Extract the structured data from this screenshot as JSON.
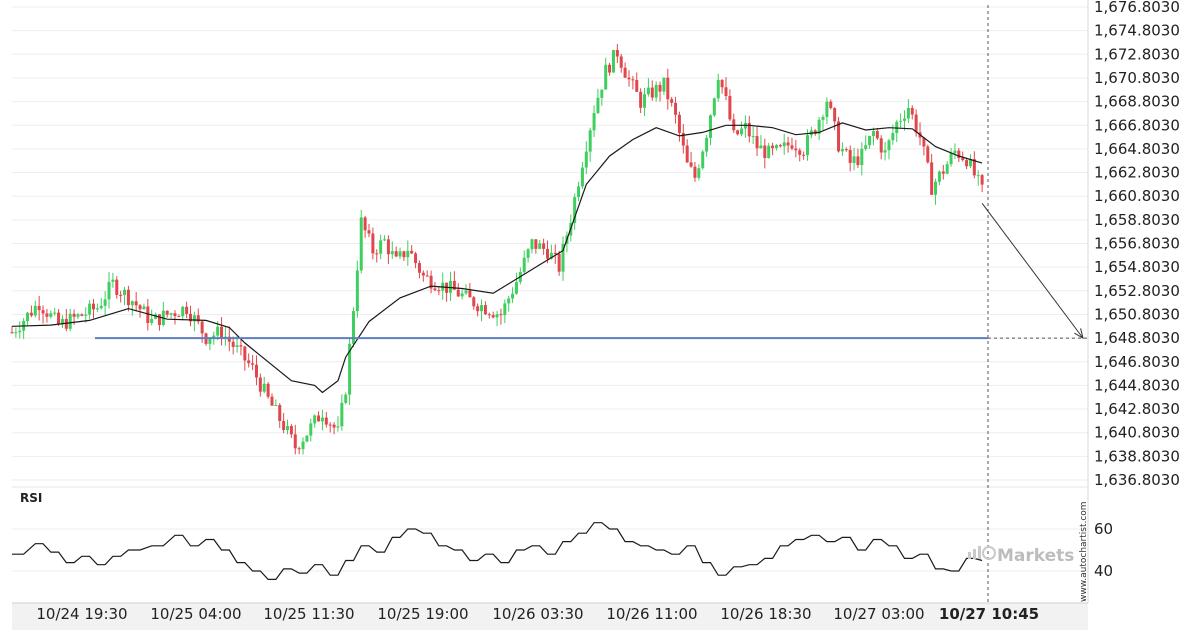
{
  "chart_data": [
    {
      "type": "candlestick",
      "x_labels": [
        "10/24 19:30",
        "10/25 04:00",
        "10/25 11:30",
        "10/25 19:00",
        "10/26 03:30",
        "10/26 11:00",
        "10/26 18:30",
        "10/27 03:00",
        "10/27 10:45"
      ],
      "current_x_label": "10/27 10:45",
      "y_ticks": [
        "1,676.8030",
        "1,674.8030",
        "1,672.8030",
        "1,670.8030",
        "1,668.8030",
        "1,666.8030",
        "1,664.8030",
        "1,662.8030",
        "1,660.8030",
        "1,658.8030",
        "1,656.8030",
        "1,654.8030",
        "1,652.8030",
        "1,650.8030",
        "1,648.8030",
        "1,646.8030",
        "1,644.8030",
        "1,642.8030",
        "1,640.8030",
        "1,638.8030",
        "1,636.8030"
      ],
      "ylim": [
        1636.803,
        1676.803
      ],
      "price_path": [
        [
          0,
          1649.3
        ],
        [
          7,
          1651.8
        ],
        [
          12,
          1649.9
        ],
        [
          17,
          1650.6
        ],
        [
          22,
          1651.4
        ],
        [
          26,
          1653.4
        ],
        [
          31,
          1652.0
        ],
        [
          36,
          1650.2
        ],
        [
          40,
          1650.8
        ],
        [
          45,
          1651.4
        ],
        [
          50,
          1648.9
        ],
        [
          54,
          1649.3
        ],
        [
          58,
          1647.8
        ],
        [
          62,
          1646.2
        ],
        [
          66,
          1643.6
        ],
        [
          70,
          1641.4
        ],
        [
          73,
          1639.6
        ],
        [
          76,
          1640.8
        ],
        [
          80,
          1642.6
        ],
        [
          84,
          1640.8
        ],
        [
          86,
          1644.6
        ],
        [
          88,
          1651.4
        ],
        [
          90,
          1658.6
        ],
        [
          93,
          1656.2
        ],
        [
          96,
          1657.0
        ],
        [
          99,
          1655.2
        ],
        [
          102,
          1656.4
        ],
        [
          106,
          1654.0
        ],
        [
          110,
          1653.4
        ],
        [
          114,
          1652.8
        ],
        [
          118,
          1652.0
        ],
        [
          122,
          1651.4
        ],
        [
          126,
          1650.8
        ],
        [
          130,
          1653.6
        ],
        [
          134,
          1656.8
        ],
        [
          138,
          1656.2
        ],
        [
          141,
          1654.8
        ],
        [
          144,
          1659.0
        ],
        [
          147,
          1663.8
        ],
        [
          150,
          1668.2
        ],
        [
          153,
          1671.4
        ],
        [
          156,
          1673.0
        ],
        [
          159,
          1670.6
        ],
        [
          162,
          1668.8
        ],
        [
          165,
          1669.6
        ],
        [
          168,
          1670.2
        ],
        [
          171,
          1667.4
        ],
        [
          174,
          1663.4
        ],
        [
          176,
          1662.4
        ],
        [
          179,
          1666.2
        ],
        [
          182,
          1671.2
        ],
        [
          184,
          1668.8
        ],
        [
          186,
          1665.8
        ],
        [
          189,
          1666.6
        ],
        [
          192,
          1665.0
        ],
        [
          195,
          1664.4
        ],
        [
          198,
          1664.6
        ],
        [
          201,
          1665.4
        ],
        [
          204,
          1664.8
        ],
        [
          207,
          1666.6
        ],
        [
          210,
          1669.0
        ],
        [
          213,
          1665.2
        ],
        [
          216,
          1663.6
        ],
        [
          219,
          1664.2
        ],
        [
          222,
          1666.2
        ],
        [
          225,
          1664.4
        ],
        [
          228,
          1667.0
        ],
        [
          231,
          1668.4
        ],
        [
          234,
          1665.8
        ],
        [
          237,
          1661.6
        ],
        [
          240,
          1663.0
        ],
        [
          243,
          1664.6
        ],
        [
          246,
          1664.0
        ],
        [
          248,
          1662.6
        ],
        [
          250,
          1661.2
        ]
      ],
      "moving_average_path": [
        [
          0,
          1649.8
        ],
        [
          10,
          1649.9
        ],
        [
          20,
          1650.3
        ],
        [
          30,
          1651.3
        ],
        [
          40,
          1650.4
        ],
        [
          50,
          1650.3
        ],
        [
          56,
          1649.7
        ],
        [
          60,
          1648.4
        ],
        [
          66,
          1646.8
        ],
        [
          72,
          1645.2
        ],
        [
          78,
          1644.8
        ],
        [
          80,
          1644.2
        ],
        [
          84,
          1645.2
        ],
        [
          86,
          1647.2
        ],
        [
          92,
          1650.2
        ],
        [
          100,
          1652.2
        ],
        [
          108,
          1653.2
        ],
        [
          116,
          1653.0
        ],
        [
          124,
          1652.6
        ],
        [
          130,
          1653.8
        ],
        [
          136,
          1655.0
        ],
        [
          142,
          1656.2
        ],
        [
          148,
          1661.8
        ],
        [
          154,
          1664.2
        ],
        [
          160,
          1665.6
        ],
        [
          166,
          1666.6
        ],
        [
          172,
          1665.9
        ],
        [
          178,
          1666.2
        ],
        [
          184,
          1666.8
        ],
        [
          190,
          1666.8
        ],
        [
          196,
          1666.6
        ],
        [
          202,
          1666.0
        ],
        [
          208,
          1666.2
        ],
        [
          214,
          1667.0
        ],
        [
          220,
          1666.4
        ],
        [
          226,
          1666.6
        ],
        [
          232,
          1666.5
        ],
        [
          238,
          1665.0
        ],
        [
          244,
          1664.2
        ],
        [
          250,
          1663.6
        ]
      ],
      "horizontal_level": 1648.803,
      "forecast": {
        "from": [
          250,
          1660.2
        ],
        "to": [
          276,
          1648.8
        ]
      },
      "x_domain": [
        0,
        276
      ],
      "colors": {
        "up": "#3fcf5f",
        "down": "#e0474c",
        "level": "#5b7fc2",
        "ma": "#1a1a1a",
        "grid": "#eeeeee"
      }
    },
    {
      "type": "line",
      "title": "RSI",
      "y_ticks": [
        "60",
        "40"
      ],
      "ylim": [
        25,
        72
      ],
      "x_domain": [
        0,
        276
      ],
      "values": [
        [
          0,
          48
        ],
        [
          6,
          53
        ],
        [
          10,
          49
        ],
        [
          14,
          44
        ],
        [
          18,
          47
        ],
        [
          22,
          43
        ],
        [
          26,
          47
        ],
        [
          30,
          50
        ],
        [
          36,
          52
        ],
        [
          42,
          57
        ],
        [
          46,
          52
        ],
        [
          50,
          55
        ],
        [
          54,
          50
        ],
        [
          58,
          44
        ],
        [
          62,
          40
        ],
        [
          66,
          36
        ],
        [
          70,
          41
        ],
        [
          74,
          39
        ],
        [
          78,
          43
        ],
        [
          82,
          38
        ],
        [
          86,
          45
        ],
        [
          90,
          52
        ],
        [
          94,
          49
        ],
        [
          98,
          56
        ],
        [
          102,
          60
        ],
        [
          106,
          58
        ],
        [
          110,
          52
        ],
        [
          114,
          50
        ],
        [
          118,
          45
        ],
        [
          122,
          48
        ],
        [
          126,
          44
        ],
        [
          130,
          50
        ],
        [
          134,
          52
        ],
        [
          138,
          48
        ],
        [
          142,
          54
        ],
        [
          146,
          58
        ],
        [
          150,
          63
        ],
        [
          154,
          60
        ],
        [
          158,
          54
        ],
        [
          162,
          52
        ],
        [
          166,
          50
        ],
        [
          170,
          48
        ],
        [
          174,
          52
        ],
        [
          178,
          44
        ],
        [
          182,
          38
        ],
        [
          186,
          42
        ],
        [
          190,
          43
        ],
        [
          194,
          46
        ],
        [
          198,
          52
        ],
        [
          202,
          55
        ],
        [
          206,
          57
        ],
        [
          210,
          54
        ],
        [
          214,
          56
        ],
        [
          218,
          50
        ],
        [
          222,
          55
        ],
        [
          226,
          52
        ],
        [
          230,
          46
        ],
        [
          234,
          48
        ],
        [
          238,
          41
        ],
        [
          242,
          40
        ],
        [
          246,
          46
        ],
        [
          250,
          45
        ]
      ],
      "color": "#1a1a1a"
    }
  ],
  "watermark": "www.autochartist.com",
  "brand": "Markets"
}
